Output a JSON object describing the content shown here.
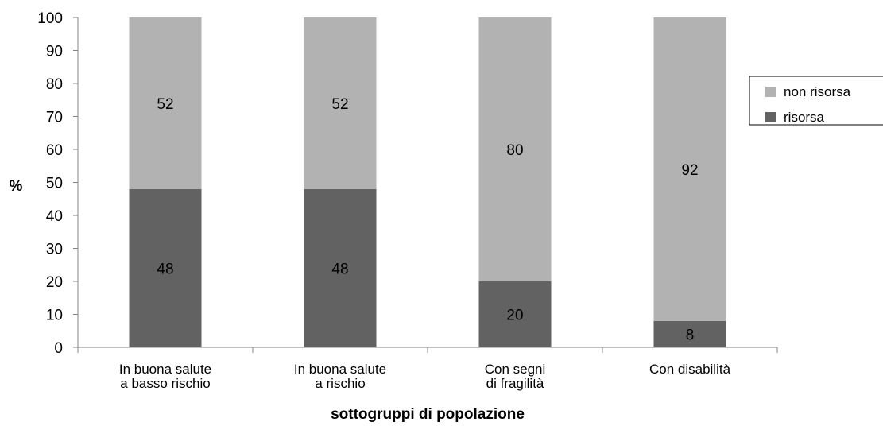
{
  "chart_data": {
    "type": "bar",
    "stacked": true,
    "categories": [
      [
        "In buona salute",
        "a basso rischio"
      ],
      [
        "In buona salute",
        "a rischio"
      ],
      [
        "Con segni",
        "di fragilità"
      ],
      [
        "Con disabilità"
      ]
    ],
    "series": [
      {
        "name": "risorsa",
        "values": [
          48,
          48,
          20,
          8
        ],
        "color": "#626262"
      },
      {
        "name": "non risorsa",
        "values": [
          52,
          52,
          80,
          92
        ],
        "color": "#b2b2b2"
      }
    ],
    "legend_order": [
      "non risorsa",
      "risorsa"
    ],
    "xlabel": "sottogruppi di popolazione",
    "ylabel": "%",
    "ylim": [
      0,
      100
    ],
    "yticks": [
      0,
      10,
      20,
      30,
      40,
      50,
      60,
      70,
      80,
      90,
      100
    ],
    "grid": false,
    "legend_position": "right"
  }
}
